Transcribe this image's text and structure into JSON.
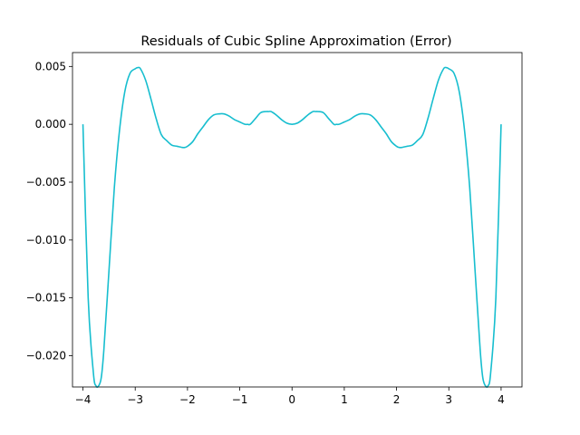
{
  "chart_data": {
    "type": "line",
    "title": "Residuals of Cubic Spline Approximation (Error)",
    "xlabel": "",
    "ylabel": "",
    "xlim": [
      -4.2,
      4.4
    ],
    "ylim": [
      -0.0227,
      0.0062
    ],
    "x_ticks": [
      -4,
      -3,
      -2,
      -1,
      0,
      1,
      2,
      3,
      4
    ],
    "x_tick_labels": [
      "−4",
      "−3",
      "−2",
      "−1",
      "0",
      "1",
      "2",
      "3",
      "4"
    ],
    "y_ticks": [
      0.005,
      0.0,
      -0.005,
      -0.01,
      -0.015,
      -0.02
    ],
    "y_tick_labels": [
      "0.005",
      "0.000",
      "−0.005",
      "−0.010",
      "−0.015",
      "−0.020"
    ],
    "grid": false,
    "legend": "none",
    "series": [
      {
        "color": "#17becf",
        "x": [
          -4.0,
          -3.9,
          -3.8,
          -3.75,
          -3.7,
          -3.65,
          -3.6,
          -3.5,
          -3.4,
          -3.3,
          -3.2,
          -3.1,
          -3.0,
          -2.95,
          -2.9,
          -2.8,
          -2.7,
          -2.6,
          -2.5,
          -2.4,
          -2.3,
          -2.2,
          -2.1,
          -2.05,
          -2.0,
          -1.9,
          -1.8,
          -1.7,
          -1.6,
          -1.5,
          -1.4,
          -1.3,
          -1.2,
          -1.1,
          -1.0,
          -0.9,
          -0.85,
          -0.8,
          -0.7,
          -0.6,
          -0.5,
          -0.45,
          -0.4,
          -0.3,
          -0.2,
          -0.1,
          0.0,
          0.1,
          0.2,
          0.3,
          0.4,
          0.45,
          0.5,
          0.6,
          0.7,
          0.8,
          0.85,
          0.9,
          1.0,
          1.1,
          1.2,
          1.3,
          1.4,
          1.5,
          1.6,
          1.7,
          1.8,
          1.9,
          2.0,
          2.05,
          2.1,
          2.2,
          2.3,
          2.4,
          2.5,
          2.6,
          2.7,
          2.8,
          2.9,
          2.95,
          3.0,
          3.1,
          3.2,
          3.3,
          3.4,
          3.5,
          3.6,
          3.65,
          3.7,
          3.75,
          3.8,
          3.9,
          4.0
        ],
        "y": [
          0.0,
          -0.015,
          -0.0215,
          -0.0226,
          -0.0226,
          -0.0219,
          -0.0195,
          -0.0125,
          -0.0055,
          -0.0005,
          0.0028,
          0.0044,
          0.0048,
          0.0049,
          0.0048,
          0.0038,
          0.0022,
          0.0005,
          -0.0009,
          -0.0014,
          -0.0018,
          -0.0019,
          -0.002,
          -0.002,
          -0.0019,
          -0.0015,
          -0.0008,
          -0.0002,
          0.0004,
          0.0008,
          0.0009,
          0.0009,
          0.0007,
          0.0004,
          0.0002,
          0.0,
          0.0,
          0.0,
          0.0005,
          0.001,
          0.0011,
          0.0011,
          0.0011,
          0.0008,
          0.0004,
          0.0001,
          0.0,
          0.0001,
          0.0004,
          0.0008,
          0.0011,
          0.0011,
          0.0011,
          0.001,
          0.0005,
          0.0,
          0.0,
          0.0,
          0.0002,
          0.0004,
          0.0007,
          0.0009,
          0.0009,
          0.0008,
          0.0004,
          -0.0002,
          -0.0008,
          -0.0015,
          -0.0019,
          -0.002,
          -0.002,
          -0.0019,
          -0.0018,
          -0.0014,
          -0.0009,
          0.0005,
          0.0022,
          0.0038,
          0.0048,
          0.0049,
          0.0048,
          0.0044,
          0.0028,
          -0.0005,
          -0.0055,
          -0.0125,
          -0.0195,
          -0.0219,
          -0.0226,
          -0.0226,
          -0.0215,
          -0.015,
          0.0
        ]
      }
    ]
  }
}
